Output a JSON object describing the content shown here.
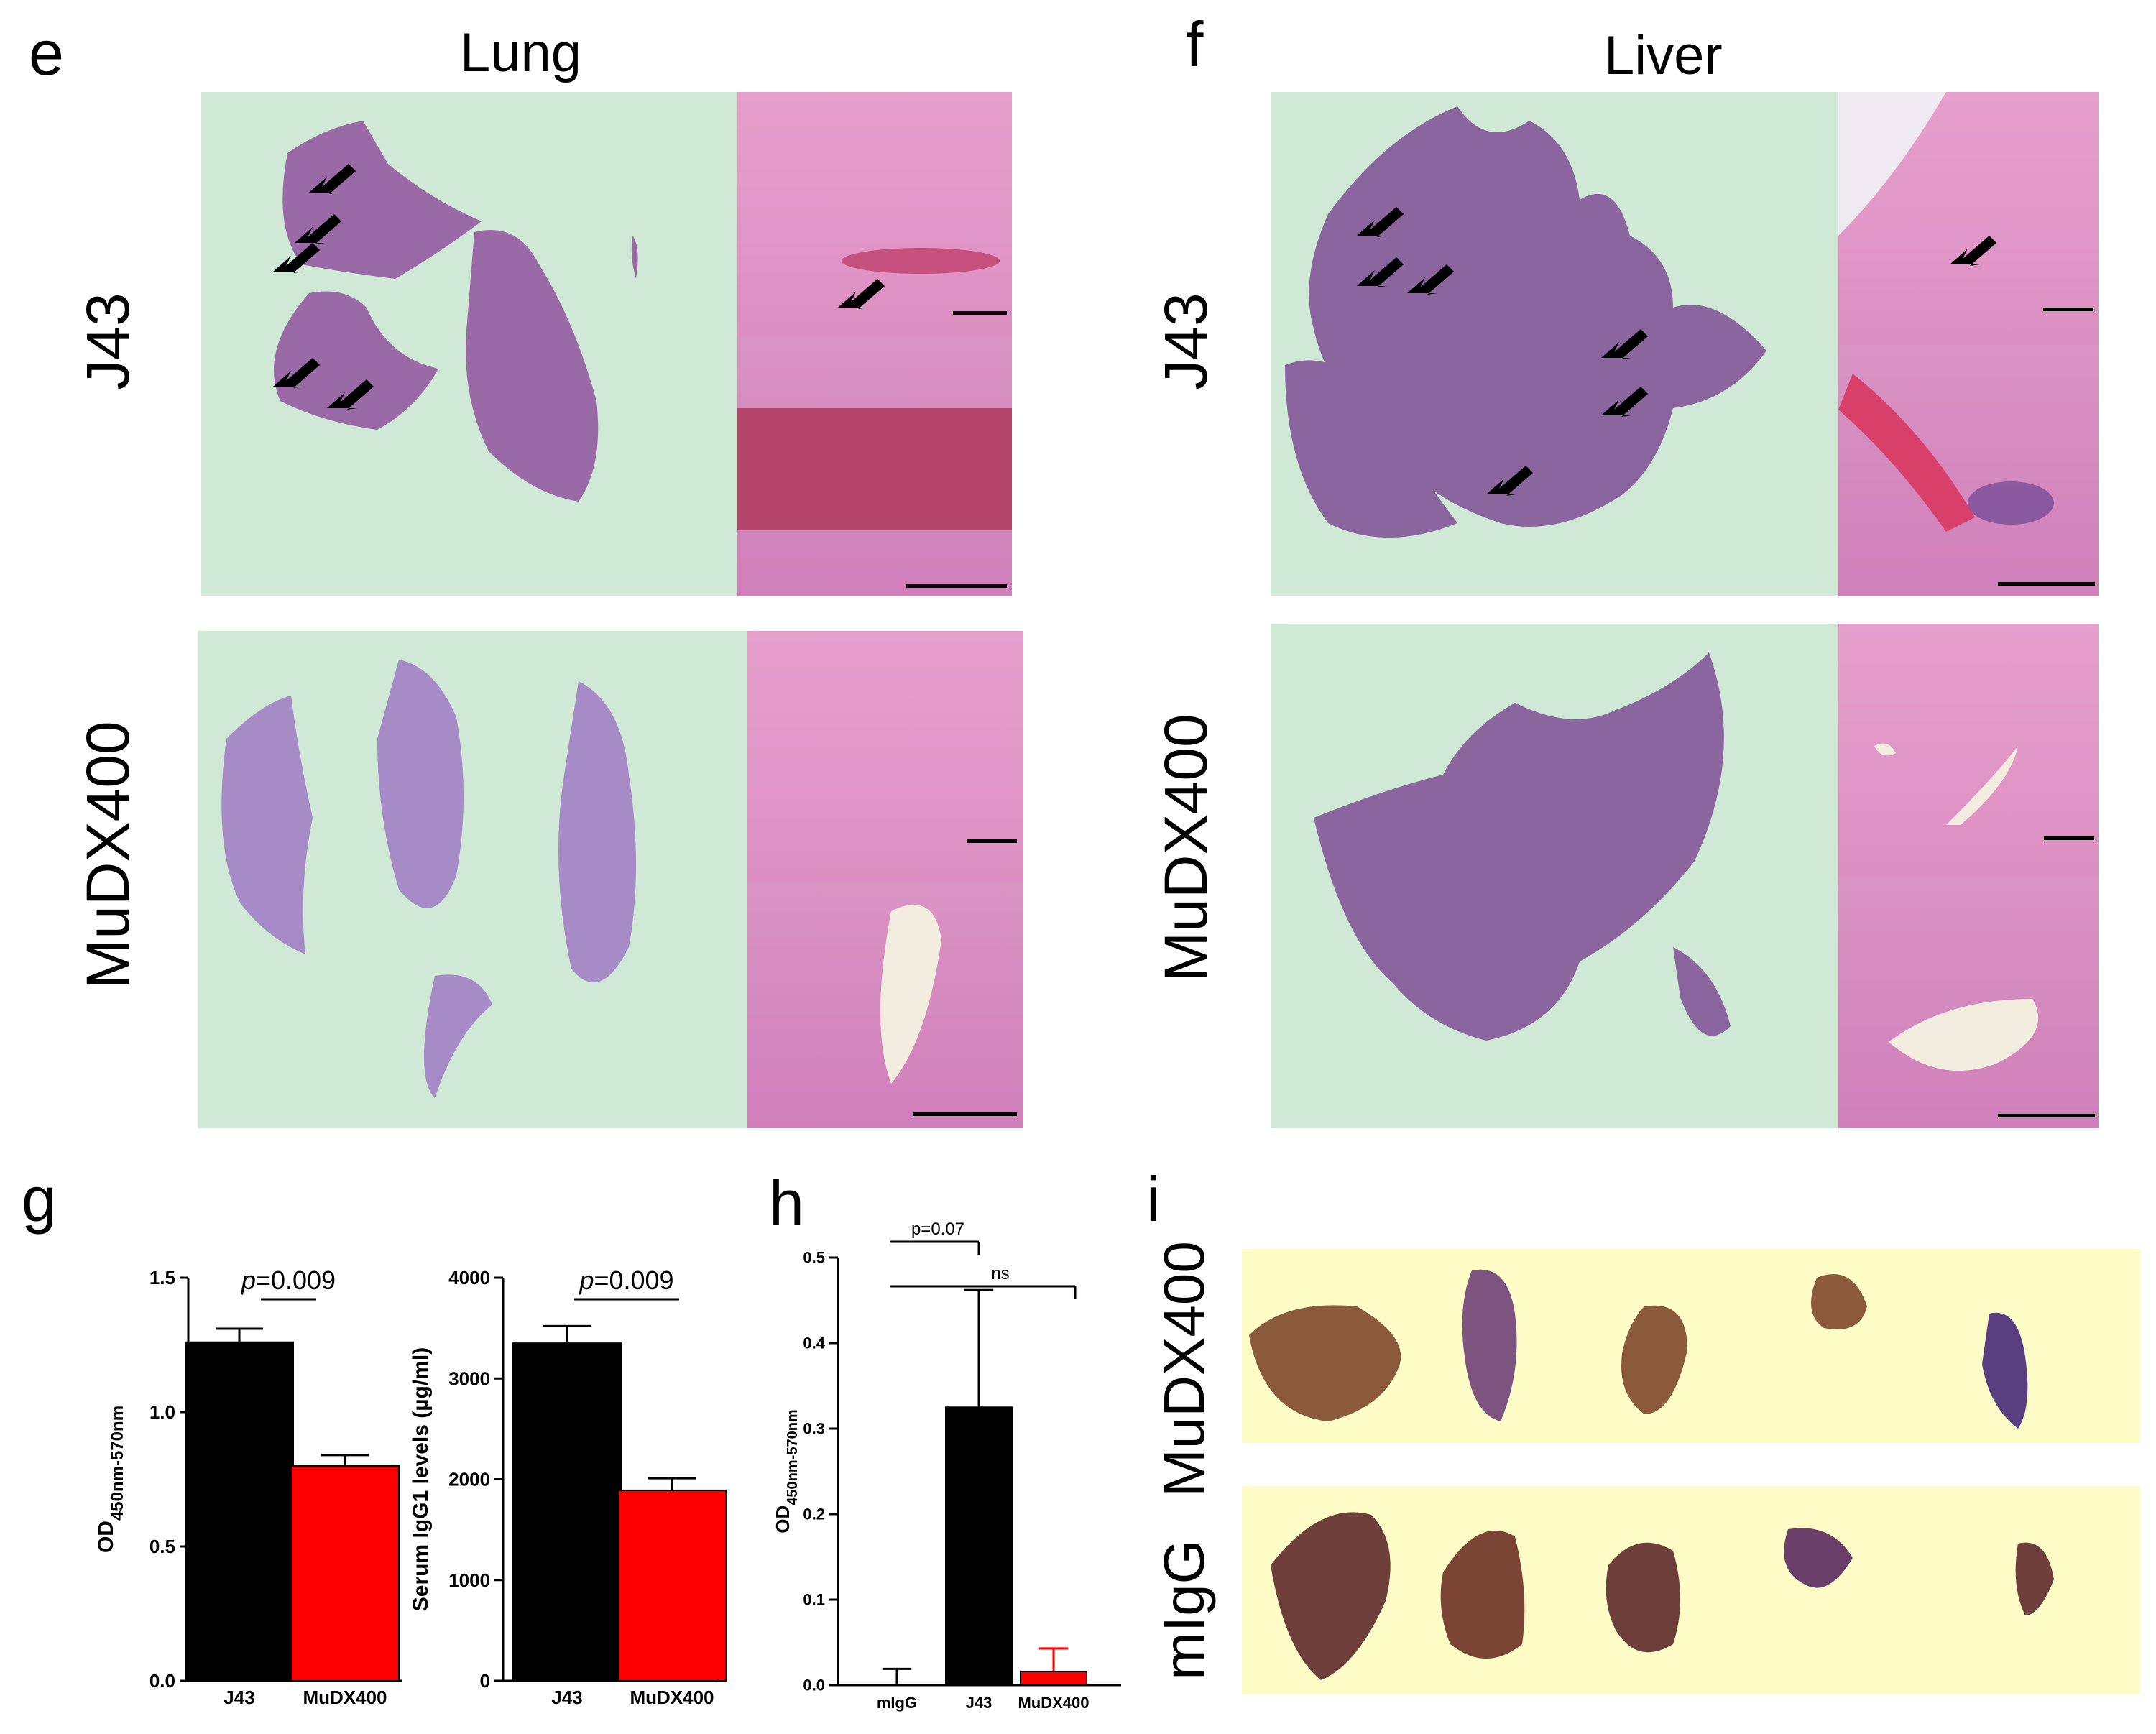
{
  "panels": {
    "e": {
      "letter": "e",
      "title": "Lung",
      "rows": [
        "J43",
        "MuDX400"
      ]
    },
    "f": {
      "letter": "f",
      "title": "Liver",
      "rows": [
        "J43",
        "MuDX400"
      ]
    },
    "g": {
      "letter": "g"
    },
    "h": {
      "letter": "h"
    },
    "i": {
      "letter": "i",
      "rows": [
        "MuDX400",
        "mIgG"
      ]
    }
  },
  "colors": {
    "j43": "#000000",
    "mudx400": "#ff0000",
    "mIgG": "#000000",
    "lung_bg": "#cfe9d6",
    "tissue": "#9a6aa6",
    "he_pink": "#dc8fc2",
    "ihc_bg": "#fdfbc6"
  },
  "chart_data": [
    {
      "id": "g1",
      "type": "bar",
      "categories": [
        "J43",
        "MuDX400"
      ],
      "values": [
        1.26,
        0.8
      ],
      "errors": [
        0.05,
        0.04
      ],
      "colors": [
        "#000000",
        "#ff0000"
      ],
      "ylabel": "OD450nm-570nm",
      "ylabel_main": "OD",
      "ylabel_sub": "450nm-570nm",
      "ylim": [
        0,
        1.5
      ],
      "yticks": [
        "0.0",
        "0.5",
        "1.0",
        "1.5"
      ],
      "annotation": {
        "italic": "p",
        "text": "=0.009"
      }
    },
    {
      "id": "g2",
      "type": "bar",
      "categories": [
        "J43",
        "MuDX400"
      ],
      "values": [
        3350,
        1890
      ],
      "errors": [
        170,
        120
      ],
      "colors": [
        "#000000",
        "#ff0000"
      ],
      "ylabel": "Serum IgG1 levels (µg/ml)",
      "ylim": [
        0,
        4000
      ],
      "yticks": [
        "0",
        "1000",
        "2000",
        "3000",
        "4000"
      ],
      "annotation": {
        "italic": "p",
        "text": "=0.009"
      }
    },
    {
      "id": "h",
      "type": "bar",
      "categories": [
        "mIgG",
        "J43",
        "MuDX400"
      ],
      "values": [
        0.0,
        0.325,
        0.016
      ],
      "errors": [
        0.019,
        0.137,
        0.027
      ],
      "colors": [
        "#000000",
        "#000000",
        "#ff0000"
      ],
      "ylabel": "OD450nm-570nm",
      "ylabel_main": "OD",
      "ylabel_sub": "450nm-570nm",
      "ylim": [
        0,
        0.5
      ],
      "yticks": [
        "0.0",
        "0.1",
        "0.2",
        "0.3",
        "0.4",
        "0.5"
      ],
      "annotations": [
        {
          "text": "p=0.07",
          "from": 0,
          "to": 1
        },
        {
          "text": "ns",
          "from": 0,
          "to": 2
        }
      ]
    }
  ]
}
